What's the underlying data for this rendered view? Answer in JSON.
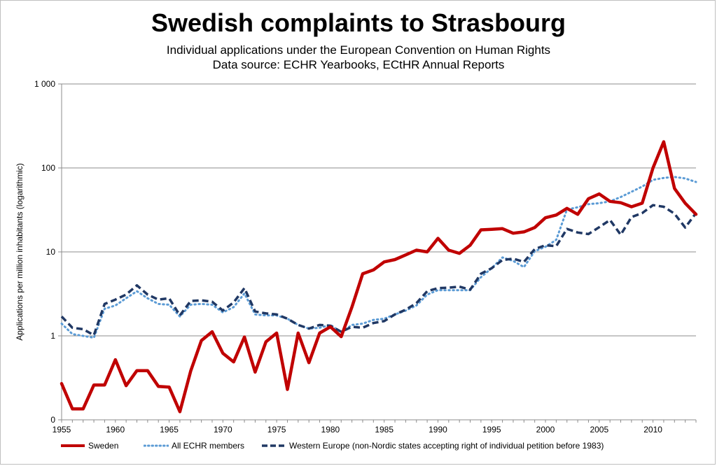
{
  "chart_data": {
    "type": "line",
    "title": "Swedish complaints to Strasbourg",
    "subtitle_lines": [
      "Individual applications under the European Convention on Human Rights",
      "Data source: ECHR Yearbooks, ECtHR Annual Reports"
    ],
    "ylabel": "Applications per million inhabitants (logarithmic)",
    "yscale": "log",
    "ylim": [
      0.1,
      1000
    ],
    "y_ticks": [
      {
        "value": 0.1,
        "label": "0"
      },
      {
        "value": 1,
        "label": "1"
      },
      {
        "value": 10,
        "label": "10"
      },
      {
        "value": 100,
        "label": "100"
      },
      {
        "value": 1000,
        "label": "1 000"
      }
    ],
    "xlim": [
      1955,
      2014
    ],
    "x_ticks": [
      1955,
      1960,
      1965,
      1970,
      1975,
      1980,
      1985,
      1990,
      1995,
      2000,
      2005,
      2010
    ],
    "grid": true,
    "legend_position": "bottom",
    "x": [
      1955,
      1956,
      1957,
      1958,
      1959,
      1960,
      1961,
      1962,
      1963,
      1964,
      1965,
      1966,
      1967,
      1968,
      1969,
      1970,
      1971,
      1972,
      1973,
      1974,
      1975,
      1976,
      1977,
      1978,
      1979,
      1980,
      1981,
      1982,
      1983,
      1984,
      1985,
      1986,
      1987,
      1988,
      1989,
      1990,
      1991,
      1992,
      1993,
      1994,
      1995,
      1996,
      1997,
      1998,
      1999,
      2000,
      2001,
      2002,
      2003,
      2004,
      2005,
      2006,
      2007,
      2008,
      2009,
      2010,
      2011,
      2012,
      2013,
      2014
    ],
    "series": [
      {
        "name": "Sweden",
        "color": "#c00000",
        "style": "solid",
        "values": [
          0.27,
          0.135,
          0.135,
          0.26,
          0.26,
          0.52,
          0.255,
          0.385,
          0.385,
          0.25,
          0.245,
          0.125,
          0.38,
          0.88,
          1.12,
          0.62,
          0.49,
          0.97,
          0.37,
          0.85,
          1.08,
          0.23,
          1.08,
          0.48,
          1.08,
          1.28,
          0.98,
          2.2,
          5.5,
          6.1,
          7.6,
          8.1,
          9.2,
          10.5,
          10.0,
          14.5,
          10.5,
          9.6,
          12.0,
          18.3,
          18.6,
          18.9,
          16.7,
          17.3,
          19.5,
          25.5,
          27.5,
          33.0,
          28.0,
          43.0,
          49.0,
          40.0,
          38.5,
          34.5,
          38.0,
          100.0,
          205.0,
          57.0,
          38.0,
          28.0
        ]
      },
      {
        "name": "All ECHR members",
        "color": "#5b9bd5",
        "style": "dotted",
        "values": [
          1.4,
          1.05,
          1.0,
          0.95,
          2.1,
          2.3,
          2.8,
          3.4,
          2.8,
          2.4,
          2.35,
          1.7,
          2.35,
          2.4,
          2.35,
          1.9,
          2.2,
          3.2,
          1.8,
          1.75,
          1.75,
          1.6,
          1.35,
          1.22,
          1.25,
          1.35,
          1.1,
          1.35,
          1.4,
          1.55,
          1.6,
          1.8,
          2.0,
          2.3,
          3.1,
          3.5,
          3.5,
          3.5,
          3.5,
          5.0,
          6.4,
          8.6,
          7.8,
          6.6,
          10.2,
          11.5,
          13.9,
          32.0,
          34.0,
          37.0,
          38.0,
          40.0,
          45.0,
          52.0,
          60.0,
          72.0,
          76.0,
          78.0,
          75.0,
          68.0
        ]
      },
      {
        "name": "Western Europe (non-Nordic states accepting right of individual petition before 1983)",
        "color": "#203864",
        "style": "dashed",
        "values": [
          1.7,
          1.25,
          1.2,
          1.02,
          2.4,
          2.7,
          3.1,
          4.0,
          3.1,
          2.7,
          2.8,
          1.75,
          2.6,
          2.65,
          2.55,
          2.0,
          2.5,
          3.7,
          1.95,
          1.85,
          1.8,
          1.6,
          1.35,
          1.22,
          1.35,
          1.32,
          1.12,
          1.28,
          1.25,
          1.42,
          1.5,
          1.8,
          2.05,
          2.45,
          3.4,
          3.7,
          3.75,
          3.85,
          3.55,
          5.5,
          6.4,
          8.0,
          8.3,
          7.6,
          10.8,
          12.0,
          11.7,
          18.8,
          17.0,
          16.3,
          19.7,
          24.0,
          16.0,
          26.0,
          29.0,
          36.0,
          34.5,
          28.5,
          19.5,
          29.0
        ]
      }
    ]
  }
}
